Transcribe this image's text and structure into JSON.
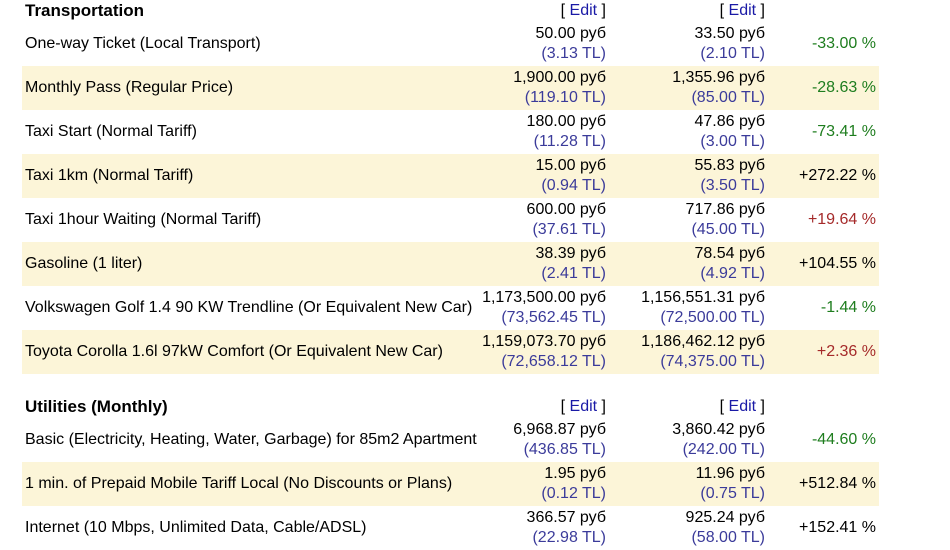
{
  "sections": [
    {
      "title": "Transportation",
      "edit_label": "Edit",
      "rows": [
        {
          "label": "One-way Ticket (Local Transport)",
          "c1_rub": "50.00 руб",
          "c1_tl": "(3.13 TL)",
          "c2_rub": "33.50 руб",
          "c2_tl": "(2.10 TL)",
          "diff": "-33.00 %",
          "trend": "neg"
        },
        {
          "label": "Monthly Pass (Regular Price)",
          "c1_rub": "1,900.00 руб",
          "c1_tl": "(119.10 TL)",
          "c2_rub": "1,355.96 руб",
          "c2_tl": "(85.00 TL)",
          "diff": "-28.63 %",
          "trend": "neg"
        },
        {
          "label": "Taxi Start (Normal Tariff)",
          "c1_rub": "180.00 руб",
          "c1_tl": "(11.28 TL)",
          "c2_rub": "47.86 руб",
          "c2_tl": "(3.00 TL)",
          "diff": "-73.41 %",
          "trend": "neg"
        },
        {
          "label": "Taxi 1km (Normal Tariff)",
          "c1_rub": "15.00 руб",
          "c1_tl": "(0.94 TL)",
          "c2_rub": "55.83 руб",
          "c2_tl": "(3.50 TL)",
          "diff": "+272.22 %",
          "trend": "pos-big"
        },
        {
          "label": "Taxi 1hour Waiting (Normal Tariff)",
          "c1_rub": "600.00 руб",
          "c1_tl": "(37.61 TL)",
          "c2_rub": "717.86 руб",
          "c2_tl": "(45.00 TL)",
          "diff": "+19.64 %",
          "trend": "pos"
        },
        {
          "label": "Gasoline (1 liter)",
          "c1_rub": "38.39 руб",
          "c1_tl": "(2.41 TL)",
          "c2_rub": "78.54 руб",
          "c2_tl": "(4.92 TL)",
          "diff": "+104.55 %",
          "trend": "pos-big"
        },
        {
          "label": "Volkswagen Golf 1.4 90 KW Trendline (Or Equivalent New Car)",
          "c1_rub": "1,173,500.00 руб",
          "c1_tl": "(73,562.45 TL)",
          "c2_rub": "1,156,551.31 руб",
          "c2_tl": "(72,500.00 TL)",
          "diff": "-1.44 %",
          "trend": "neg"
        },
        {
          "label": "Toyota Corolla 1.6l 97kW Comfort (Or Equivalent New Car)",
          "c1_rub": "1,159,073.70 руб",
          "c1_tl": "(72,658.12 TL)",
          "c2_rub": "1,186,462.12 руб",
          "c2_tl": "(74,375.00 TL)",
          "diff": "+2.36 %",
          "trend": "pos"
        }
      ]
    },
    {
      "title": "Utilities (Monthly)",
      "edit_label": "Edit",
      "rows": [
        {
          "label": "Basic (Electricity, Heating, Water, Garbage) for 85m2 Apartment",
          "c1_rub": "6,968.87 руб",
          "c1_tl": "(436.85 TL)",
          "c2_rub": "3,860.42 руб",
          "c2_tl": "(242.00 TL)",
          "diff": "-44.60 %",
          "trend": "neg"
        },
        {
          "label": "1 min. of Prepaid Mobile Tariff Local (No Discounts or Plans)",
          "c1_rub": "1.95 руб",
          "c1_tl": "(0.12 TL)",
          "c2_rub": "11.96 руб",
          "c2_tl": "(0.75 TL)",
          "diff": "+512.84 %",
          "trend": "pos-big"
        },
        {
          "label": "Internet (10 Mbps, Unlimited Data, Cable/ADSL)",
          "c1_rub": "366.57 руб",
          "c1_tl": "(22.98 TL)",
          "c2_rub": "925.24 руб",
          "c2_tl": "(58.00 TL)",
          "diff": "+152.41 %",
          "trend": "pos-big"
        }
      ]
    }
  ],
  "colors": {
    "row_alt_bg": "#fcf5d8",
    "decrease": "#1e7d1e",
    "increase": "#a52a2a",
    "link": "#1a1aa6",
    "converted": "#3b3b9a"
  }
}
